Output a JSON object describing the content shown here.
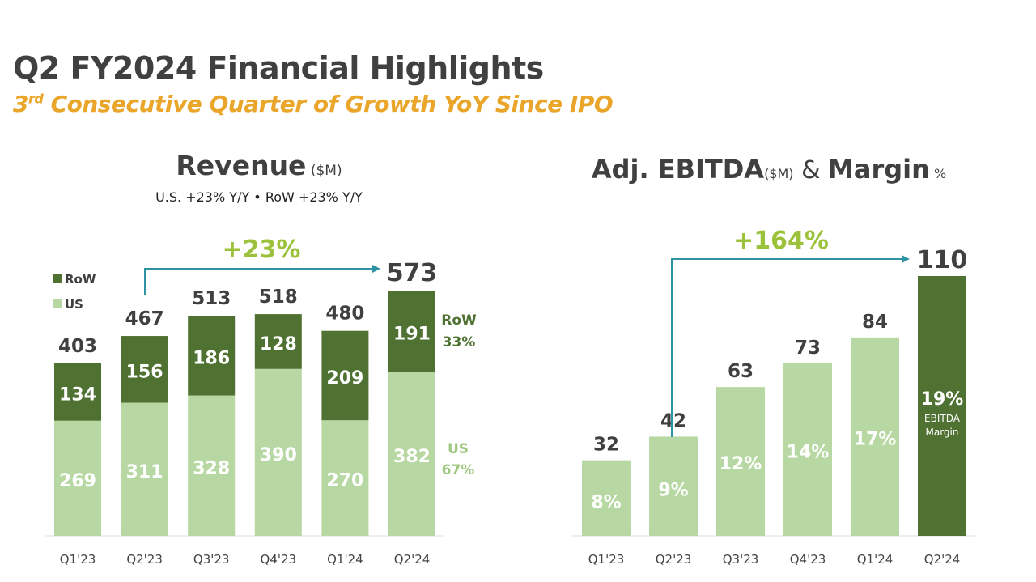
{
  "title": "Q2 FY2024 Financial Highlights",
  "subtitle": {
    "ordinal": "3",
    "ordinal_suffix": "rd",
    "text": " Consecutive Quarter of Growth YoY Since IPO"
  },
  "colors": {
    "row": "#4f7233",
    "us": "#b8d8a3",
    "growth": "#9bc23a",
    "arrow": "#2e93a3",
    "text": "#404040",
    "subtitle": "#e9a62b"
  },
  "chart_data": [
    {
      "type": "bar",
      "stacked": true,
      "title": "Revenue",
      "title_unit": "($M)",
      "note": "U.S. +23% Y/Y  •  RoW +23% Y/Y",
      "categories": [
        "Q1'23",
        "Q2'23",
        "Q3'23",
        "Q4'23",
        "Q1'24",
        "Q2'24"
      ],
      "series": [
        {
          "name": "US",
          "values": [
            269,
            311,
            328,
            390,
            270,
            382
          ]
        },
        {
          "name": "RoW",
          "values": [
            134,
            156,
            186,
            128,
            209,
            191
          ]
        }
      ],
      "totals": [
        403,
        467,
        513,
        518,
        480,
        573
      ],
      "legend": "top-left",
      "growth_label": "+23%",
      "side_labels": {
        "row_name": "RoW",
        "row_pct": "33%",
        "us_name": "US",
        "us_pct": "67%"
      },
      "ylim": [
        0,
        600
      ]
    },
    {
      "type": "bar",
      "title": "Adj. EBITDA",
      "title_unit": "($M)",
      "title_amp": "&",
      "title2": "Margin",
      "title2_unit": "%",
      "categories": [
        "Q1'23",
        "Q2'23",
        "Q3'23",
        "Q4'23",
        "Q1'24",
        "Q2'24"
      ],
      "values": [
        32,
        42,
        63,
        73,
        84,
        110
      ],
      "margins": [
        "8%",
        "9%",
        "12%",
        "14%",
        "17%",
        "19%"
      ],
      "margin_caption": "EBITDA Margin",
      "growth_label": "+164%",
      "ylim": [
        0,
        115
      ]
    }
  ]
}
